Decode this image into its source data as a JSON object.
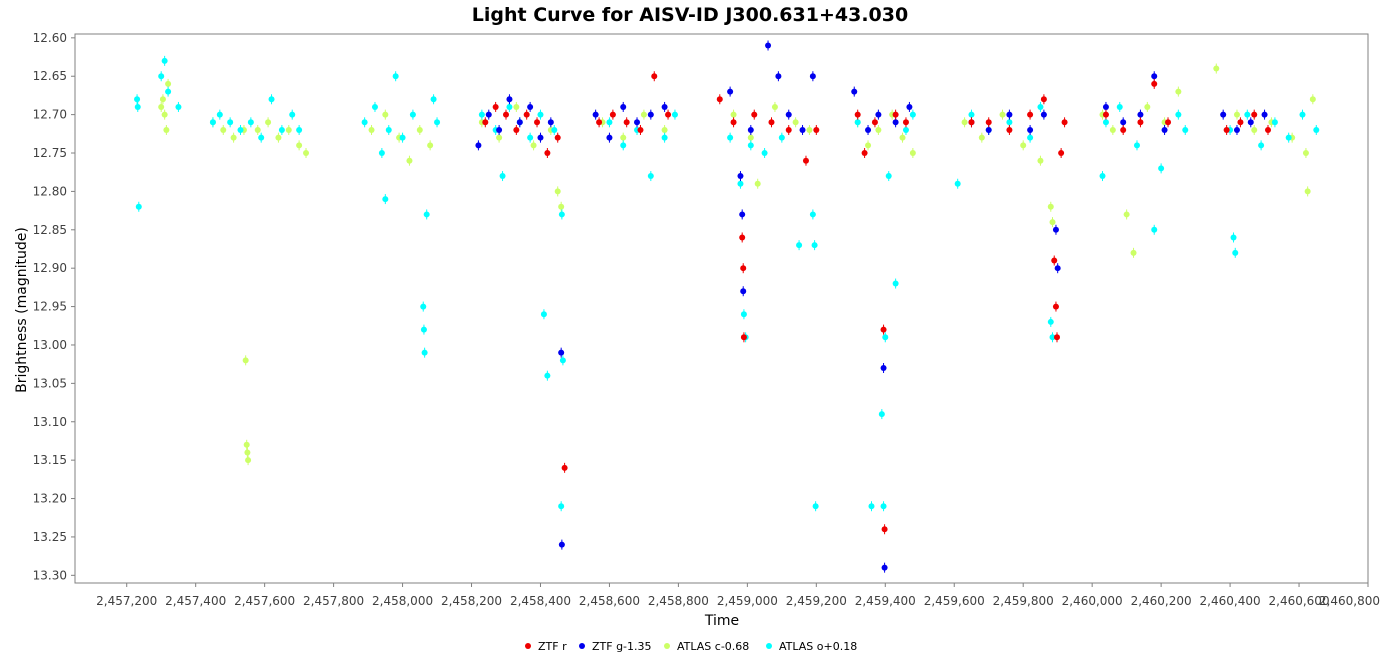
{
  "chart_data": {
    "type": "scatter",
    "title": "Light Curve for AISV-ID J300.631+43.030",
    "xlabel": "Time",
    "ylabel": "Brightness (magnitude)",
    "xlim": [
      2457050,
      2460800
    ],
    "ylim": [
      13.31,
      12.595
    ],
    "y_inverted": true,
    "x_ticks": [
      2457200,
      2457400,
      2457600,
      2457800,
      2458000,
      2458200,
      2458400,
      2458600,
      2458800,
      2459000,
      2459200,
      2459400,
      2459600,
      2459800,
      2460000,
      2460200,
      2460400,
      2460600,
      2460800
    ],
    "x_tick_labels": [
      "2,457,200",
      "2,457,400",
      "2,457,600",
      "2,457,800",
      "2,458,000",
      "2,458,200",
      "2,458,400",
      "2,458,600",
      "2,458,800",
      "2,459,000",
      "2,459,200",
      "2,459,400",
      "2,459,600",
      "2,459,800",
      "2,460,000",
      "2,460,200",
      "2,460,400",
      "2,460,600",
      "2,460,800"
    ],
    "y_ticks": [
      12.6,
      12.65,
      12.7,
      12.75,
      12.8,
      12.85,
      12.9,
      12.95,
      13.0,
      13.05,
      13.1,
      13.15,
      13.2,
      13.25,
      13.3
    ],
    "y_tick_labels": [
      "12.60",
      "12.65",
      "12.70",
      "12.75",
      "12.80",
      "12.85",
      "12.90",
      "12.95",
      "13.00",
      "13.05",
      "13.10",
      "13.15",
      "13.20",
      "13.25",
      "13.30"
    ],
    "grid": false,
    "legend_position": "bottom-center",
    "series": [
      {
        "name": "ATLAS c-0.68",
        "color": "#ccff66",
        "points": [
          [
            2457305,
            12.68
          ],
          [
            2457310,
            12.7
          ],
          [
            2457315,
            12.72
          ],
          [
            2457320,
            12.66
          ],
          [
            2457300,
            12.69
          ],
          [
            2457450,
            12.71
          ],
          [
            2457480,
            12.72
          ],
          [
            2457510,
            12.73
          ],
          [
            2457540,
            12.72
          ],
          [
            2457545,
            13.02
          ],
          [
            2457548,
            13.13
          ],
          [
            2457550,
            13.14
          ],
          [
            2457552,
            13.15
          ],
          [
            2457580,
            12.72
          ],
          [
            2457610,
            12.71
          ],
          [
            2457640,
            12.73
          ],
          [
            2457670,
            12.72
          ],
          [
            2457700,
            12.74
          ],
          [
            2457720,
            12.75
          ],
          [
            2457910,
            12.72
          ],
          [
            2457950,
            12.7
          ],
          [
            2457990,
            12.73
          ],
          [
            2458020,
            12.76
          ],
          [
            2458050,
            12.72
          ],
          [
            2458080,
            12.74
          ],
          [
            2458230,
            12.71
          ],
          [
            2458280,
            12.73
          ],
          [
            2458330,
            12.69
          ],
          [
            2458380,
            12.74
          ],
          [
            2458430,
            12.72
          ],
          [
            2458450,
            12.8
          ],
          [
            2458460,
            12.82
          ],
          [
            2458580,
            12.71
          ],
          [
            2458640,
            12.73
          ],
          [
            2458700,
            12.7
          ],
          [
            2458760,
            12.72
          ],
          [
            2458960,
            12.7
          ],
          [
            2459010,
            12.73
          ],
          [
            2459030,
            12.79
          ],
          [
            2459080,
            12.69
          ],
          [
            2459140,
            12.71
          ],
          [
            2459180,
            12.72
          ],
          [
            2459320,
            12.71
          ],
          [
            2459350,
            12.74
          ],
          [
            2459380,
            12.72
          ],
          [
            2459420,
            12.7
          ],
          [
            2459450,
            12.73
          ],
          [
            2459480,
            12.75
          ],
          [
            2459630,
            12.71
          ],
          [
            2459680,
            12.73
          ],
          [
            2459740,
            12.7
          ],
          [
            2459800,
            12.74
          ],
          [
            2459850,
            12.76
          ],
          [
            2459880,
            12.82
          ],
          [
            2459885,
            12.84
          ],
          [
            2460030,
            12.7
          ],
          [
            2460060,
            12.72
          ],
          [
            2460100,
            12.83
          ],
          [
            2460120,
            12.88
          ],
          [
            2460160,
            12.69
          ],
          [
            2460210,
            12.71
          ],
          [
            2460250,
            12.67
          ],
          [
            2460360,
            12.64
          ],
          [
            2460420,
            12.7
          ],
          [
            2460470,
            12.72
          ],
          [
            2460520,
            12.71
          ],
          [
            2460580,
            12.73
          ],
          [
            2460620,
            12.75
          ],
          [
            2460625,
            12.8
          ],
          [
            2460640,
            12.68
          ]
        ]
      },
      {
        "name": "ATLAS o+0.18",
        "color": "#00ffff",
        "points": [
          [
            2457230,
            12.68
          ],
          [
            2457232,
            12.69
          ],
          [
            2457235,
            12.82
          ],
          [
            2457300,
            12.65
          ],
          [
            2457310,
            12.63
          ],
          [
            2457320,
            12.67
          ],
          [
            2457350,
            12.69
          ],
          [
            2457450,
            12.71
          ],
          [
            2457470,
            12.7
          ],
          [
            2457500,
            12.71
          ],
          [
            2457530,
            12.72
          ],
          [
            2457560,
            12.71
          ],
          [
            2457590,
            12.73
          ],
          [
            2457620,
            12.68
          ],
          [
            2457650,
            12.72
          ],
          [
            2457680,
            12.7
          ],
          [
            2457700,
            12.72
          ],
          [
            2457890,
            12.71
          ],
          [
            2457920,
            12.69
          ],
          [
            2457940,
            12.75
          ],
          [
            2457950,
            12.81
          ],
          [
            2457960,
            12.72
          ],
          [
            2457980,
            12.65
          ],
          [
            2458000,
            12.73
          ],
          [
            2458030,
            12.7
          ],
          [
            2458060,
            12.95
          ],
          [
            2458062,
            12.98
          ],
          [
            2458064,
            13.01
          ],
          [
            2458070,
            12.83
          ],
          [
            2458090,
            12.68
          ],
          [
            2458100,
            12.71
          ],
          [
            2458230,
            12.7
          ],
          [
            2458270,
            12.72
          ],
          [
            2458290,
            12.78
          ],
          [
            2458310,
            12.69
          ],
          [
            2458340,
            12.71
          ],
          [
            2458370,
            12.73
          ],
          [
            2458400,
            12.7
          ],
          [
            2458410,
            12.96
          ],
          [
            2458420,
            13.04
          ],
          [
            2458440,
            12.72
          ],
          [
            2458460,
            13.21
          ],
          [
            2458462,
            12.83
          ],
          [
            2458465,
            13.02
          ],
          [
            2458600,
            12.71
          ],
          [
            2458640,
            12.74
          ],
          [
            2458680,
            12.72
          ],
          [
            2458720,
            12.78
          ],
          [
            2458760,
            12.73
          ],
          [
            2458790,
            12.7
          ],
          [
            2458950,
            12.73
          ],
          [
            2458980,
            12.79
          ],
          [
            2458990,
            12.96
          ],
          [
            2458995,
            12.99
          ],
          [
            2459010,
            12.74
          ],
          [
            2459050,
            12.75
          ],
          [
            2459100,
            12.73
          ],
          [
            2459150,
            12.87
          ],
          [
            2459190,
            12.83
          ],
          [
            2459195,
            12.87
          ],
          [
            2459198,
            13.21
          ],
          [
            2459320,
            12.71
          ],
          [
            2459360,
            13.21
          ],
          [
            2459390,
            13.09
          ],
          [
            2459395,
            13.21
          ],
          [
            2459400,
            12.99
          ],
          [
            2459410,
            12.78
          ],
          [
            2459430,
            12.92
          ],
          [
            2459460,
            12.72
          ],
          [
            2459480,
            12.7
          ],
          [
            2459610,
            12.79
          ],
          [
            2459650,
            12.7
          ],
          [
            2459700,
            12.72
          ],
          [
            2459760,
            12.71
          ],
          [
            2459820,
            12.73
          ],
          [
            2459850,
            12.69
          ],
          [
            2459880,
            12.97
          ],
          [
            2459885,
            12.99
          ],
          [
            2460030,
            12.78
          ],
          [
            2460040,
            12.71
          ],
          [
            2460080,
            12.69
          ],
          [
            2460130,
            12.74
          ],
          [
            2460180,
            12.85
          ],
          [
            2460200,
            12.77
          ],
          [
            2460250,
            12.7
          ],
          [
            2460270,
            12.72
          ],
          [
            2460400,
            12.72
          ],
          [
            2460410,
            12.86
          ],
          [
            2460415,
            12.88
          ],
          [
            2460450,
            12.7
          ],
          [
            2460490,
            12.74
          ],
          [
            2460530,
            12.71
          ],
          [
            2460570,
            12.73
          ],
          [
            2460610,
            12.7
          ],
          [
            2460650,
            12.72
          ]
        ]
      },
      {
        "name": "ZTF g-1.35",
        "color": "#0000ee",
        "points": [
          [
            2458220,
            12.74
          ],
          [
            2458250,
            12.7
          ],
          [
            2458280,
            12.72
          ],
          [
            2458310,
            12.68
          ],
          [
            2458340,
            12.71
          ],
          [
            2458370,
            12.69
          ],
          [
            2458400,
            12.73
          ],
          [
            2458430,
            12.71
          ],
          [
            2458460,
            13.01
          ],
          [
            2458462,
            13.26
          ],
          [
            2458560,
            12.7
          ],
          [
            2458600,
            12.73
          ],
          [
            2458640,
            12.69
          ],
          [
            2458680,
            12.71
          ],
          [
            2458720,
            12.7
          ],
          [
            2458760,
            12.69
          ],
          [
            2458950,
            12.67
          ],
          [
            2458980,
            12.78
          ],
          [
            2458985,
            12.83
          ],
          [
            2458988,
            12.93
          ],
          [
            2459010,
            12.72
          ],
          [
            2459060,
            12.61
          ],
          [
            2459090,
            12.65
          ],
          [
            2459120,
            12.7
          ],
          [
            2459160,
            12.72
          ],
          [
            2459190,
            12.65
          ],
          [
            2459310,
            12.67
          ],
          [
            2459350,
            12.72
          ],
          [
            2459380,
            12.7
          ],
          [
            2459395,
            13.03
          ],
          [
            2459398,
            13.29
          ],
          [
            2459430,
            12.71
          ],
          [
            2459470,
            12.69
          ],
          [
            2459650,
            12.71
          ],
          [
            2459700,
            12.72
          ],
          [
            2459760,
            12.7
          ],
          [
            2459820,
            12.72
          ],
          [
            2459860,
            12.7
          ],
          [
            2459895,
            12.85
          ],
          [
            2459900,
            12.9
          ],
          [
            2460040,
            12.69
          ],
          [
            2460090,
            12.71
          ],
          [
            2460140,
            12.7
          ],
          [
            2460180,
            12.65
          ],
          [
            2460210,
            12.72
          ],
          [
            2460380,
            12.7
          ],
          [
            2460420,
            12.72
          ],
          [
            2460460,
            12.71
          ],
          [
            2460500,
            12.7
          ]
        ]
      },
      {
        "name": "ZTF r",
        "color": "#ee0000",
        "points": [
          [
            2458240,
            12.71
          ],
          [
            2458270,
            12.69
          ],
          [
            2458300,
            12.7
          ],
          [
            2458330,
            12.72
          ],
          [
            2458360,
            12.7
          ],
          [
            2458390,
            12.71
          ],
          [
            2458420,
            12.75
          ],
          [
            2458450,
            12.73
          ],
          [
            2458470,
            13.16
          ],
          [
            2458570,
            12.71
          ],
          [
            2458610,
            12.7
          ],
          [
            2458650,
            12.71
          ],
          [
            2458690,
            12.72
          ],
          [
            2458730,
            12.65
          ],
          [
            2458770,
            12.7
          ],
          [
            2458920,
            12.68
          ],
          [
            2458960,
            12.71
          ],
          [
            2458985,
            12.86
          ],
          [
            2458988,
            12.9
          ],
          [
            2458990,
            12.99
          ],
          [
            2459020,
            12.7
          ],
          [
            2459070,
            12.71
          ],
          [
            2459120,
            12.72
          ],
          [
            2459170,
            12.76
          ],
          [
            2459200,
            12.72
          ],
          [
            2459320,
            12.7
          ],
          [
            2459340,
            12.75
          ],
          [
            2459370,
            12.71
          ],
          [
            2459395,
            12.98
          ],
          [
            2459398,
            13.24
          ],
          [
            2459430,
            12.7
          ],
          [
            2459460,
            12.71
          ],
          [
            2459650,
            12.71
          ],
          [
            2459700,
            12.71
          ],
          [
            2459760,
            12.72
          ],
          [
            2459820,
            12.7
          ],
          [
            2459860,
            12.68
          ],
          [
            2459890,
            12.89
          ],
          [
            2459895,
            12.95
          ],
          [
            2459898,
            12.99
          ],
          [
            2459910,
            12.75
          ],
          [
            2459920,
            12.71
          ],
          [
            2460040,
            12.7
          ],
          [
            2460090,
            12.72
          ],
          [
            2460140,
            12.71
          ],
          [
            2460180,
            12.66
          ],
          [
            2460220,
            12.71
          ],
          [
            2460390,
            12.72
          ],
          [
            2460430,
            12.71
          ],
          [
            2460470,
            12.7
          ],
          [
            2460510,
            12.72
          ]
        ]
      }
    ],
    "legend": [
      "ZTF r",
      "ZTF g-1.35",
      "ATLAS c-0.68",
      "ATLAS o+0.18"
    ]
  }
}
